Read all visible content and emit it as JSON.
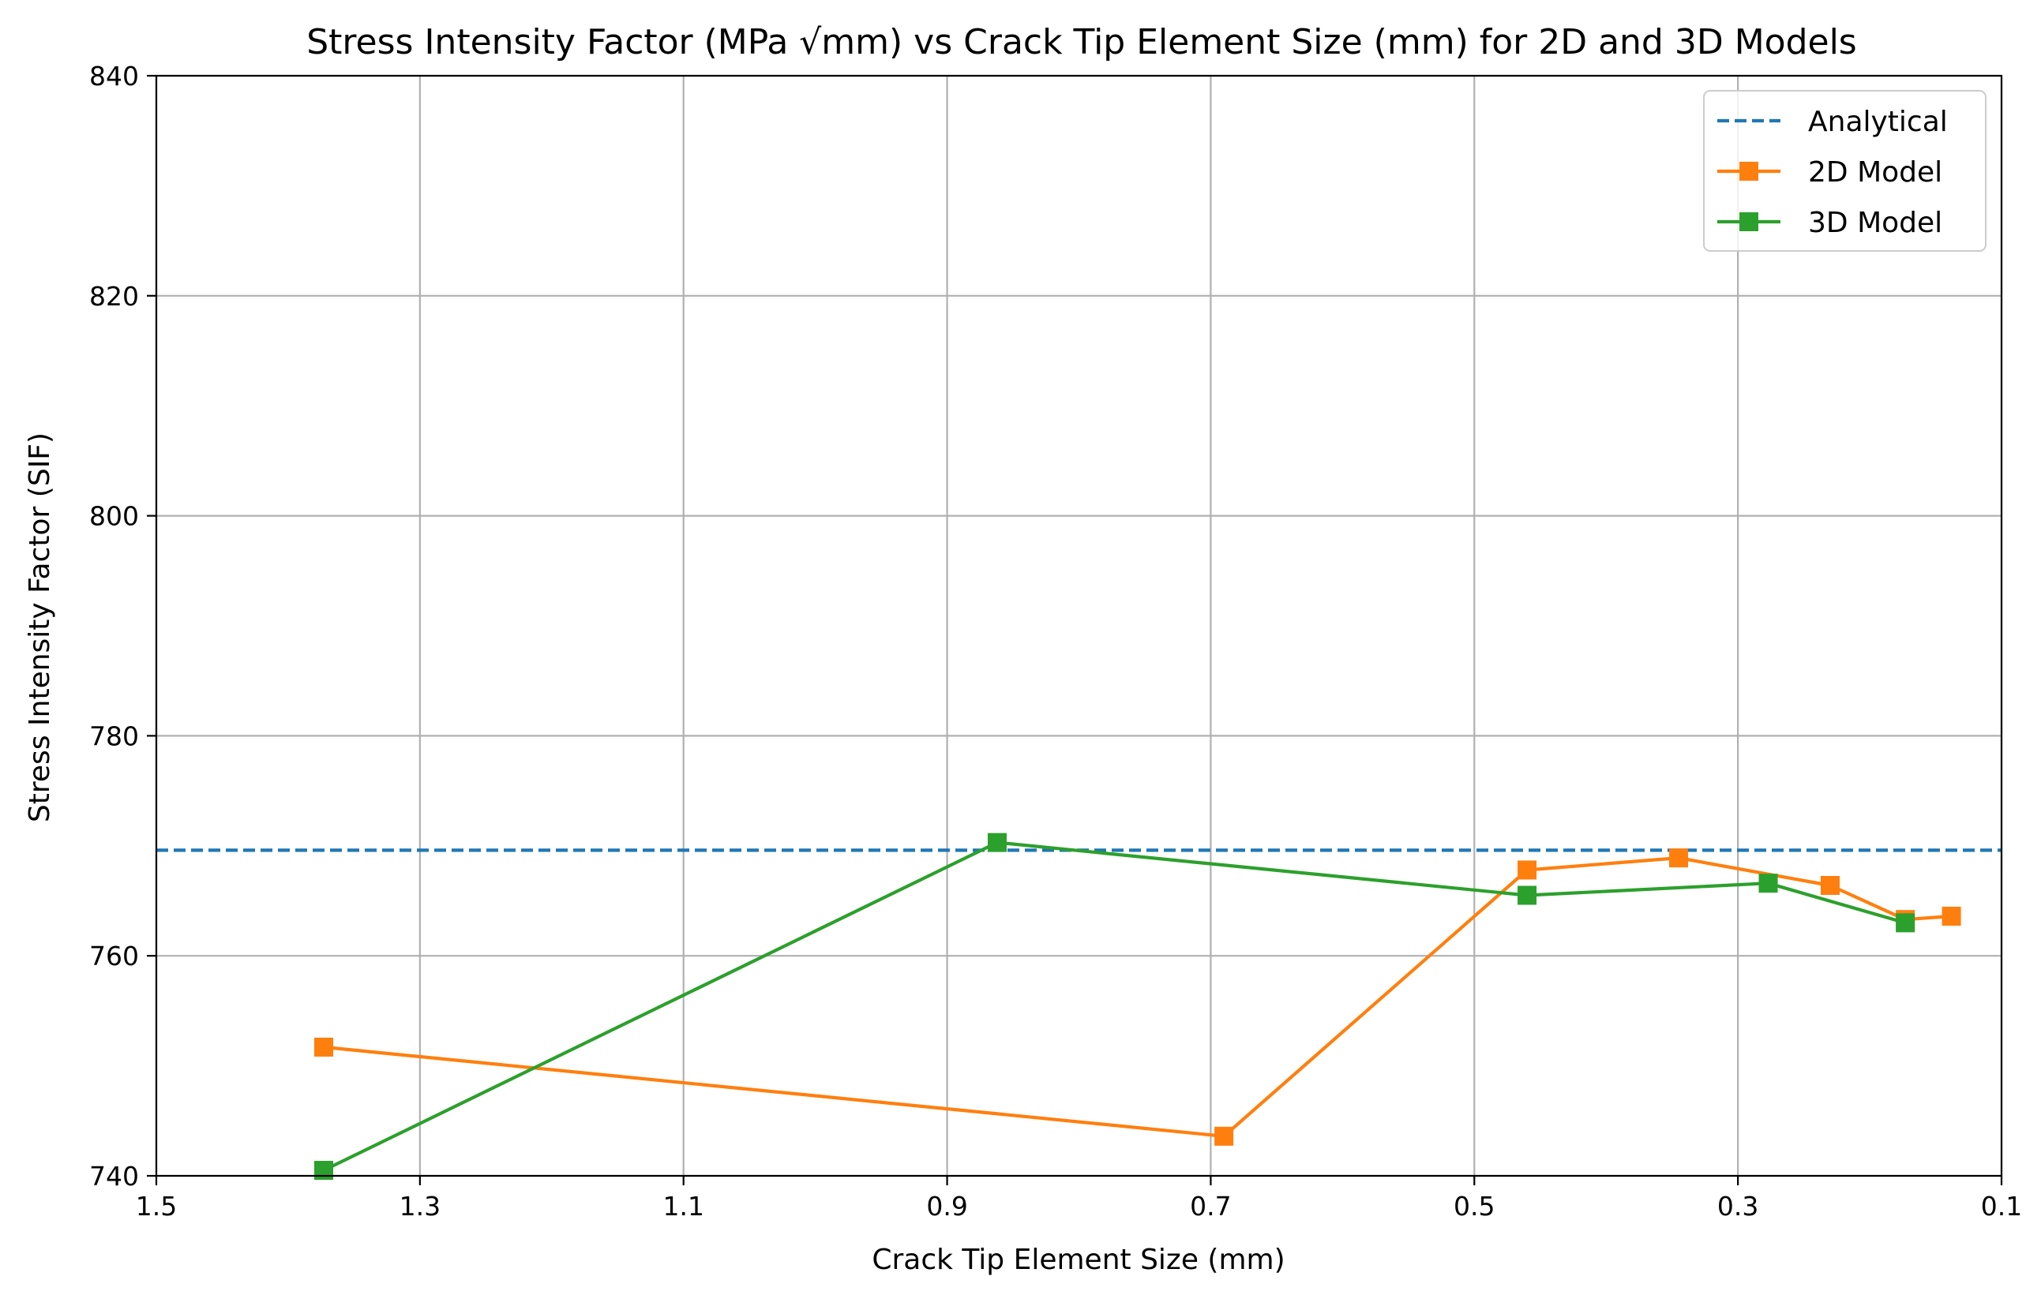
{
  "chart_data": {
    "type": "line",
    "title": "Stress Intensity Factor (MPa √mm) vs Crack Tip Element Size (mm) for 2D and 3D Models",
    "xlabel": "Crack Tip Element Size (mm)",
    "ylabel": "Stress Intensity Factor (SIF)",
    "xlim": [
      1.5,
      0.1
    ],
    "ylim": [
      740,
      840
    ],
    "x_ticks": [
      1.5,
      1.3,
      1.1,
      0.9,
      0.7,
      0.5,
      0.3,
      0.1
    ],
    "x_tick_labels": [
      "1.5",
      "1.3",
      "1.1",
      "0.9",
      "0.7",
      "0.5",
      "0.3",
      "0.1"
    ],
    "y_ticks": [
      740,
      760,
      780,
      800,
      820,
      840
    ],
    "y_tick_labels": [
      "740",
      "760",
      "780",
      "800",
      "820",
      "840"
    ],
    "grid": true,
    "legend_position": "top-right",
    "reference_lines": [
      {
        "name": "Analytical",
        "y": 769.6,
        "color": "#1f77b4",
        "style": "dashed"
      }
    ],
    "series": [
      {
        "name": "2D Model",
        "color": "#ff7f0e",
        "marker": "square",
        "x": [
          1.373,
          0.69,
          0.46,
          0.345,
          0.23,
          0.173,
          0.138
        ],
        "y": [
          751.7,
          743.6,
          767.8,
          768.9,
          766.4,
          763.3,
          763.6
        ]
      },
      {
        "name": "3D Model",
        "color": "#2ca02c",
        "marker": "square",
        "x": [
          1.373,
          0.862,
          0.46,
          0.277,
          0.173
        ],
        "y": [
          740.5,
          770.3,
          765.5,
          766.6,
          763.0
        ]
      }
    ]
  }
}
